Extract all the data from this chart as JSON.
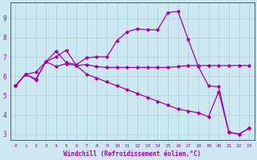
{
  "background_color": "#cce8f0",
  "grid_color": "#aaccdd",
  "line_color": "#aa00aa",
  "xlabel": "Windchill (Refroidissement éolien,°C)",
  "xlim": [
    -0.5,
    23.5
  ],
  "ylim": [
    2.7,
    9.8
  ],
  "xticks": [
    0,
    1,
    2,
    3,
    4,
    5,
    6,
    7,
    8,
    9,
    10,
    11,
    12,
    13,
    14,
    15,
    16,
    17,
    18,
    19,
    20,
    21,
    22,
    23
  ],
  "yticks": [
    3,
    4,
    5,
    6,
    7,
    8,
    9
  ],
  "line1_y": [
    5.5,
    6.1,
    5.8,
    6.75,
    7.3,
    6.7,
    6.6,
    6.95,
    7.0,
    7.0,
    7.85,
    8.3,
    8.45,
    8.4,
    8.4,
    9.3,
    9.35,
    7.9,
    6.5,
    5.5,
    5.45,
    3.1,
    3.0,
    3.3
  ],
  "line2_y": [
    5.5,
    6.1,
    6.2,
    6.75,
    6.5,
    6.65,
    6.55,
    6.6,
    6.5,
    6.45,
    6.45,
    6.45,
    6.45,
    6.45,
    6.45,
    6.45,
    6.5,
    6.55,
    6.55,
    6.55,
    6.55,
    6.55,
    6.55,
    6.55
  ],
  "line3_y": [
    5.5,
    6.1,
    5.85,
    6.75,
    7.0,
    7.35,
    6.55,
    6.1,
    5.9,
    5.7,
    5.5,
    5.3,
    5.1,
    4.9,
    4.7,
    4.5,
    4.3,
    4.2,
    4.1,
    3.9,
    5.2,
    3.1,
    3.0,
    3.3
  ]
}
